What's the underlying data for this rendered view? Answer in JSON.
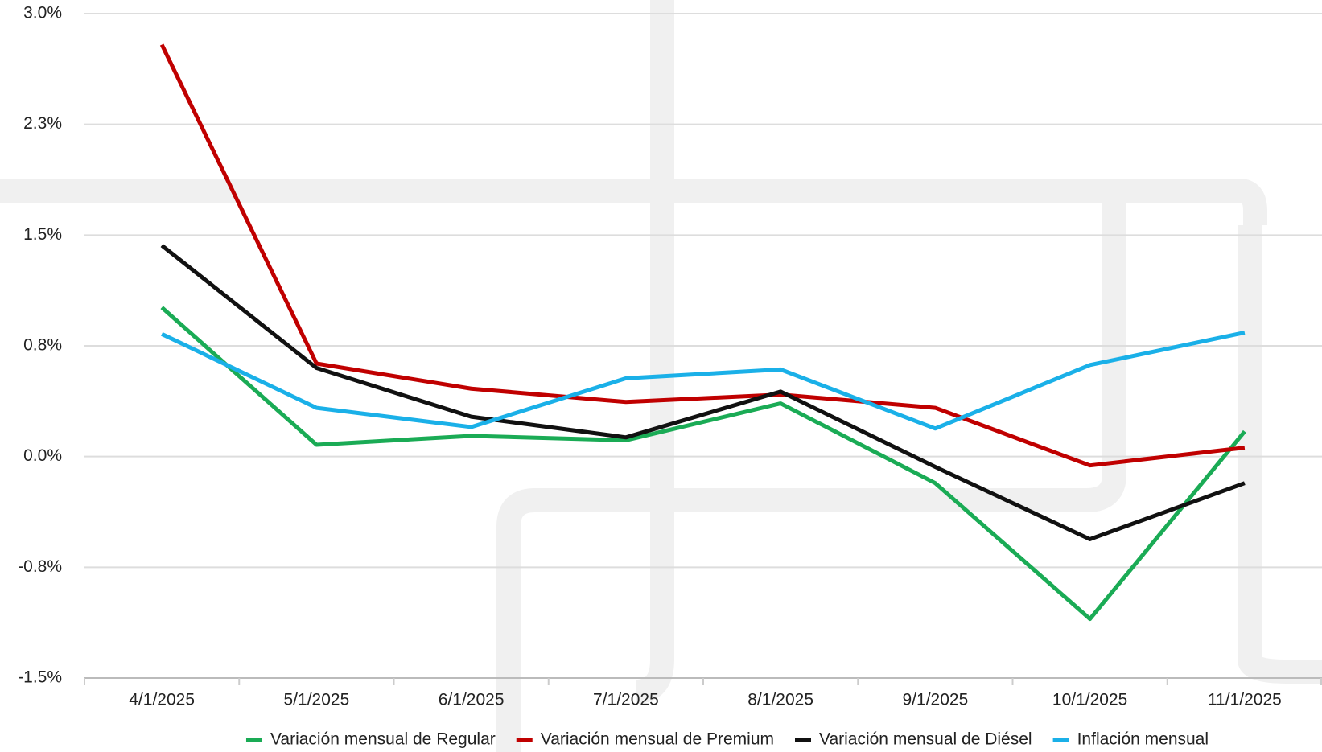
{
  "chart_data": {
    "type": "line",
    "categories": [
      "4/1/2025",
      "5/1/2025",
      "6/1/2025",
      "7/1/2025",
      "8/1/2025",
      "9/1/2025",
      "10/1/2025",
      "11/1/2025"
    ],
    "series": [
      {
        "name": "Variación mensual de Regular",
        "color": "#1aab55",
        "values": [
          1.01,
          0.08,
          0.14,
          0.11,
          0.36,
          -0.18,
          -1.1,
          0.17
        ]
      },
      {
        "name": "Variación mensual de Premium",
        "color": "#c00000",
        "values": [
          2.79,
          0.63,
          0.46,
          0.37,
          0.42,
          0.33,
          -0.06,
          0.06
        ]
      },
      {
        "name": "Variación mensual de Diésel",
        "color": "#111111",
        "values": [
          1.43,
          0.6,
          0.27,
          0.13,
          0.44,
          -0.07,
          -0.56,
          -0.18
        ]
      },
      {
        "name": "Inflación mensual",
        "color": "#1ab0e8",
        "values": [
          0.83,
          0.33,
          0.2,
          0.53,
          0.59,
          0.19,
          0.62,
          0.84
        ]
      }
    ],
    "ylim": [
      -1.5,
      3.0
    ],
    "yticks": [
      {
        "value": -1.5,
        "label": "-1.5%"
      },
      {
        "value": -0.75,
        "label": "-0.8%"
      },
      {
        "value": 0,
        "label": "0.0%"
      },
      {
        "value": 0.75,
        "label": "0.8%"
      },
      {
        "value": 1.5,
        "label": "1.5%"
      },
      {
        "value": 2.25,
        "label": "2.3%"
      },
      {
        "value": 3.0,
        "label": "3.0%"
      }
    ],
    "grid": true,
    "legend": "bottom"
  }
}
